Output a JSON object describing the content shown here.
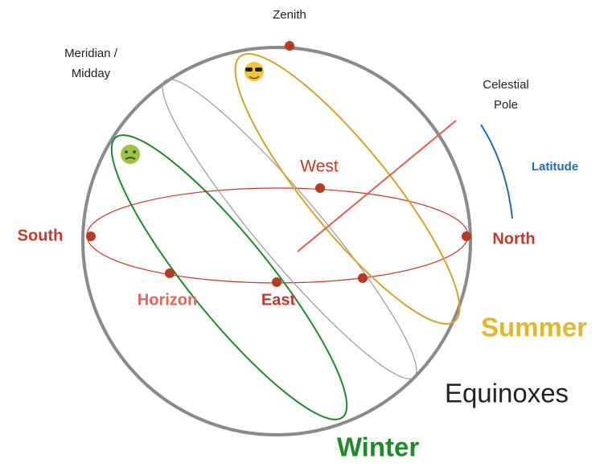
{
  "labels": {
    "zenith": "Zenith",
    "meridian": [
      "Meridian /",
      "Midday"
    ],
    "celestial_pole": [
      "Celestial",
      "Pole"
    ],
    "latitude": "Latitude",
    "west": "West",
    "south": "South",
    "north": "North",
    "horizon": "Horizon",
    "east": "East",
    "summer": "Summer",
    "equinoxes": "Equinoxes",
    "winter": "Winter"
  }
}
